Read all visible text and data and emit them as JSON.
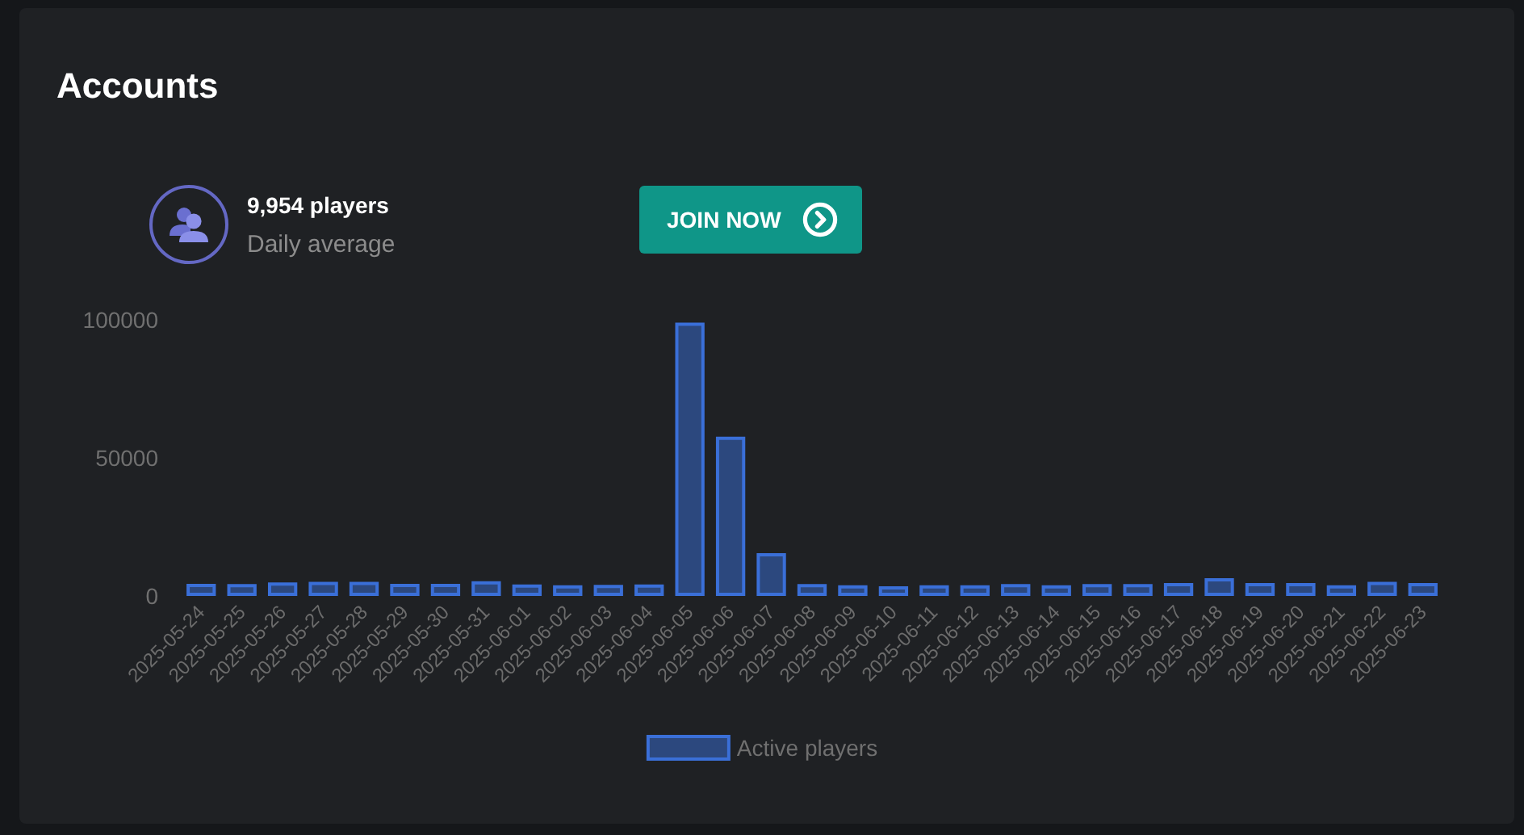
{
  "chart_data": {
    "type": "bar",
    "title": "Accounts",
    "annotations": [
      "9,954 players",
      "Daily average",
      "JOIN NOW"
    ],
    "categories": [
      "2025-05-24",
      "2025-05-25",
      "2025-05-26",
      "2025-05-27",
      "2025-05-28",
      "2025-05-29",
      "2025-05-30",
      "2025-05-31",
      "2025-06-01",
      "2025-06-02",
      "2025-06-03",
      "2025-06-04",
      "2025-06-05",
      "2025-06-06",
      "2025-06-07",
      "2025-06-08",
      "2025-06-09",
      "2025-06-10",
      "2025-06-11",
      "2025-06-12",
      "2025-06-13",
      "2025-06-14",
      "2025-06-15",
      "2025-06-16",
      "2025-06-17",
      "2025-06-18",
      "2025-06-19",
      "2025-06-20",
      "2025-06-21",
      "2025-06-22",
      "2025-06-23"
    ],
    "series": [
      {
        "name": "Active players",
        "color": "#3a6fd8",
        "values": [
          4400,
          4300,
          4900,
          5100,
          5100,
          4400,
          4400,
          5300,
          4200,
          3900,
          4000,
          4200,
          99000,
          57700,
          15500,
          4300,
          3900,
          3500,
          3900,
          3900,
          4300,
          3900,
          4300,
          4300,
          4700,
          6400,
          4700,
          4700,
          3900,
          5100,
          4700
        ]
      }
    ],
    "ylim": [
      0,
      100000
    ],
    "yticks": [
      0,
      50000,
      100000
    ],
    "grid": false,
    "legend": "bottom"
  }
}
